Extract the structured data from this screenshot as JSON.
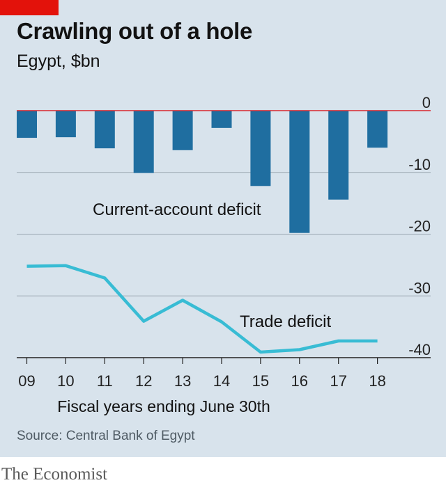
{
  "header": {
    "title": "Crawling out of a hole",
    "subtitle": "Egypt, $bn"
  },
  "footer": {
    "source": "Source: Central Bank of Egypt",
    "brand": "The Economist"
  },
  "colors": {
    "background": "#d8e3ec",
    "bar": "#1f6ea0",
    "line": "#38bcd4",
    "zero_line": "#d9262c",
    "grid": "#9aa6b0",
    "accent": "#e3120b"
  },
  "chart_data": {
    "type": "bar",
    "categories": [
      "09",
      "10",
      "11",
      "12",
      "13",
      "14",
      "15",
      "16",
      "17",
      "18"
    ],
    "xlabel": "Fiscal years ending June 30th",
    "ylim": [
      -40,
      0
    ],
    "yticks": [
      0,
      -10,
      -20,
      -30,
      -40
    ],
    "ytick_labels": [
      "0",
      "-10",
      "-20",
      "-30",
      "-40"
    ],
    "legend": "none",
    "grid": true,
    "series": [
      {
        "name": "Current-account deficit",
        "type": "bar",
        "values": [
          -4.4,
          -4.3,
          -6.1,
          -10.1,
          -6.4,
          -2.8,
          -12.2,
          -19.8,
          -14.4,
          -6.0
        ]
      },
      {
        "name": "Trade deficit",
        "type": "line",
        "values": [
          -25.2,
          -25.1,
          -27.1,
          -34.1,
          -30.7,
          -34.2,
          -39.1,
          -38.7,
          -37.3,
          -37.3
        ]
      }
    ]
  }
}
